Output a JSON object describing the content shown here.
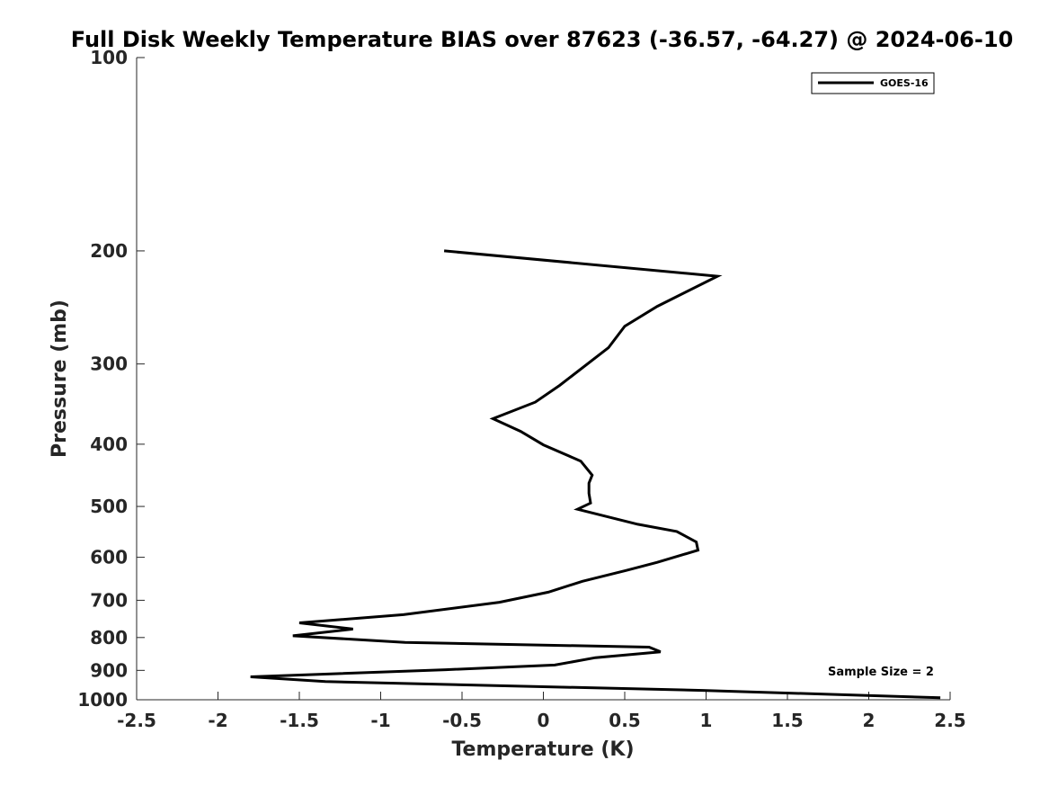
{
  "chart_data": {
    "type": "line",
    "title": "Full Disk Weekly Temperature BIAS over 87623 (-36.57, -64.27) @ 2024-06-10",
    "xlabel": "Temperature (K)",
    "ylabel": "Pressure (mb)",
    "xlim": [
      -2.5,
      2.5
    ],
    "ylim": [
      100,
      1000
    ],
    "y_scale": "log",
    "y_reversed": true,
    "x_ticks": [
      "-2.5",
      "-2",
      "-1.5",
      "-1",
      "-0.5",
      "0",
      "0.5",
      "1",
      "1.5",
      "2",
      "2.5"
    ],
    "y_ticks": [
      "100",
      "200",
      "300",
      "400",
      "500",
      "600",
      "700",
      "800",
      "900",
      "1000"
    ],
    "grid": false,
    "legend_position": "top-right",
    "series": [
      {
        "name": "GOES-16",
        "color": "#000000",
        "points": [
          [
            -0.61,
            200
          ],
          [
            1.07,
            219
          ],
          [
            0.7,
            244
          ],
          [
            0.5,
            262
          ],
          [
            0.4,
            283
          ],
          [
            0.1,
            324
          ],
          [
            -0.05,
            344
          ],
          [
            -0.31,
            365
          ],
          [
            -0.14,
            382
          ],
          [
            0.0,
            401
          ],
          [
            0.23,
            425
          ],
          [
            0.3,
            447
          ],
          [
            0.28,
            460
          ],
          [
            0.28,
            477
          ],
          [
            0.29,
            494
          ],
          [
            0.21,
            505
          ],
          [
            0.58,
            533
          ],
          [
            0.82,
            547
          ],
          [
            0.94,
            568
          ],
          [
            0.95,
            585
          ],
          [
            0.7,
            611
          ],
          [
            0.51,
            629
          ],
          [
            0.24,
            654
          ],
          [
            0.03,
            680
          ],
          [
            -0.27,
            705
          ],
          [
            -0.86,
            737
          ],
          [
            -1.5,
            759
          ],
          [
            -1.17,
            776
          ],
          [
            -1.54,
            795
          ],
          [
            -0.85,
            814
          ],
          [
            0.65,
            828
          ],
          [
            0.72,
            842
          ],
          [
            0.32,
            860
          ],
          [
            0.07,
            883
          ],
          [
            -0.6,
            898
          ],
          [
            -1.8,
            921
          ],
          [
            -1.34,
            937
          ],
          [
            0.98,
            967
          ],
          [
            2.44,
            993
          ]
        ]
      }
    ],
    "annotation": "Sample Size = 2"
  }
}
